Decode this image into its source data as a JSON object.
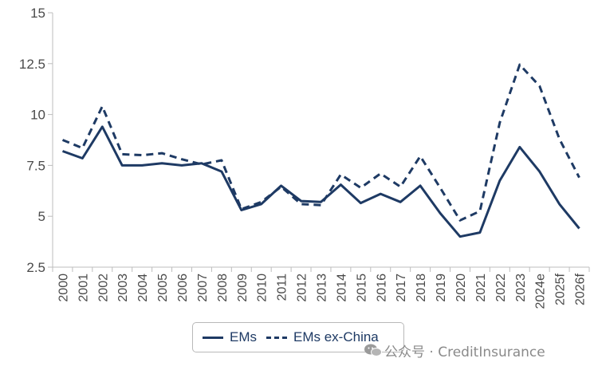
{
  "chart_data": {
    "type": "line",
    "categories": [
      "2000",
      "2001",
      "2002",
      "2003",
      "2004",
      "2005",
      "2006",
      "2007",
      "2008",
      "2009",
      "2010",
      "2011",
      "2012",
      "2013",
      "2014",
      "2015",
      "2016",
      "2017",
      "2018",
      "2019",
      "2020",
      "2021",
      "2022",
      "2023",
      "2024e",
      "2025f",
      "2026f"
    ],
    "series": [
      {
        "name": "EMs",
        "style": "solid",
        "values": [
          8.2,
          7.85,
          9.4,
          7.5,
          7.5,
          7.6,
          7.5,
          7.6,
          7.2,
          5.3,
          5.6,
          6.5,
          5.75,
          5.7,
          6.55,
          5.65,
          6.1,
          5.7,
          6.5,
          5.15,
          4.0,
          4.2,
          6.75,
          8.4,
          7.2,
          5.6,
          4.4
        ]
      },
      {
        "name": "EMs ex-China",
        "style": "dashed",
        "values": [
          8.75,
          8.35,
          10.4,
          8.05,
          8.0,
          8.1,
          7.8,
          7.55,
          7.75,
          5.35,
          5.7,
          6.45,
          5.6,
          5.55,
          7.05,
          6.4,
          7.1,
          6.45,
          7.95,
          6.4,
          4.8,
          5.25,
          9.6,
          12.45,
          11.4,
          8.8,
          6.9
        ]
      }
    ],
    "yticks": [
      2.5,
      5,
      7.5,
      10,
      12.5,
      15
    ],
    "ytick_labels": [
      "2.5",
      "5",
      "7.5",
      "10",
      "12.5",
      "15"
    ],
    "ylim": [
      2.5,
      15
    ],
    "grid": false,
    "line_color": "#1e3a64",
    "legend_position": "bottom"
  },
  "watermark": {
    "text": "公众号 · CreditInsurance",
    "icon": "wechat-icon"
  }
}
